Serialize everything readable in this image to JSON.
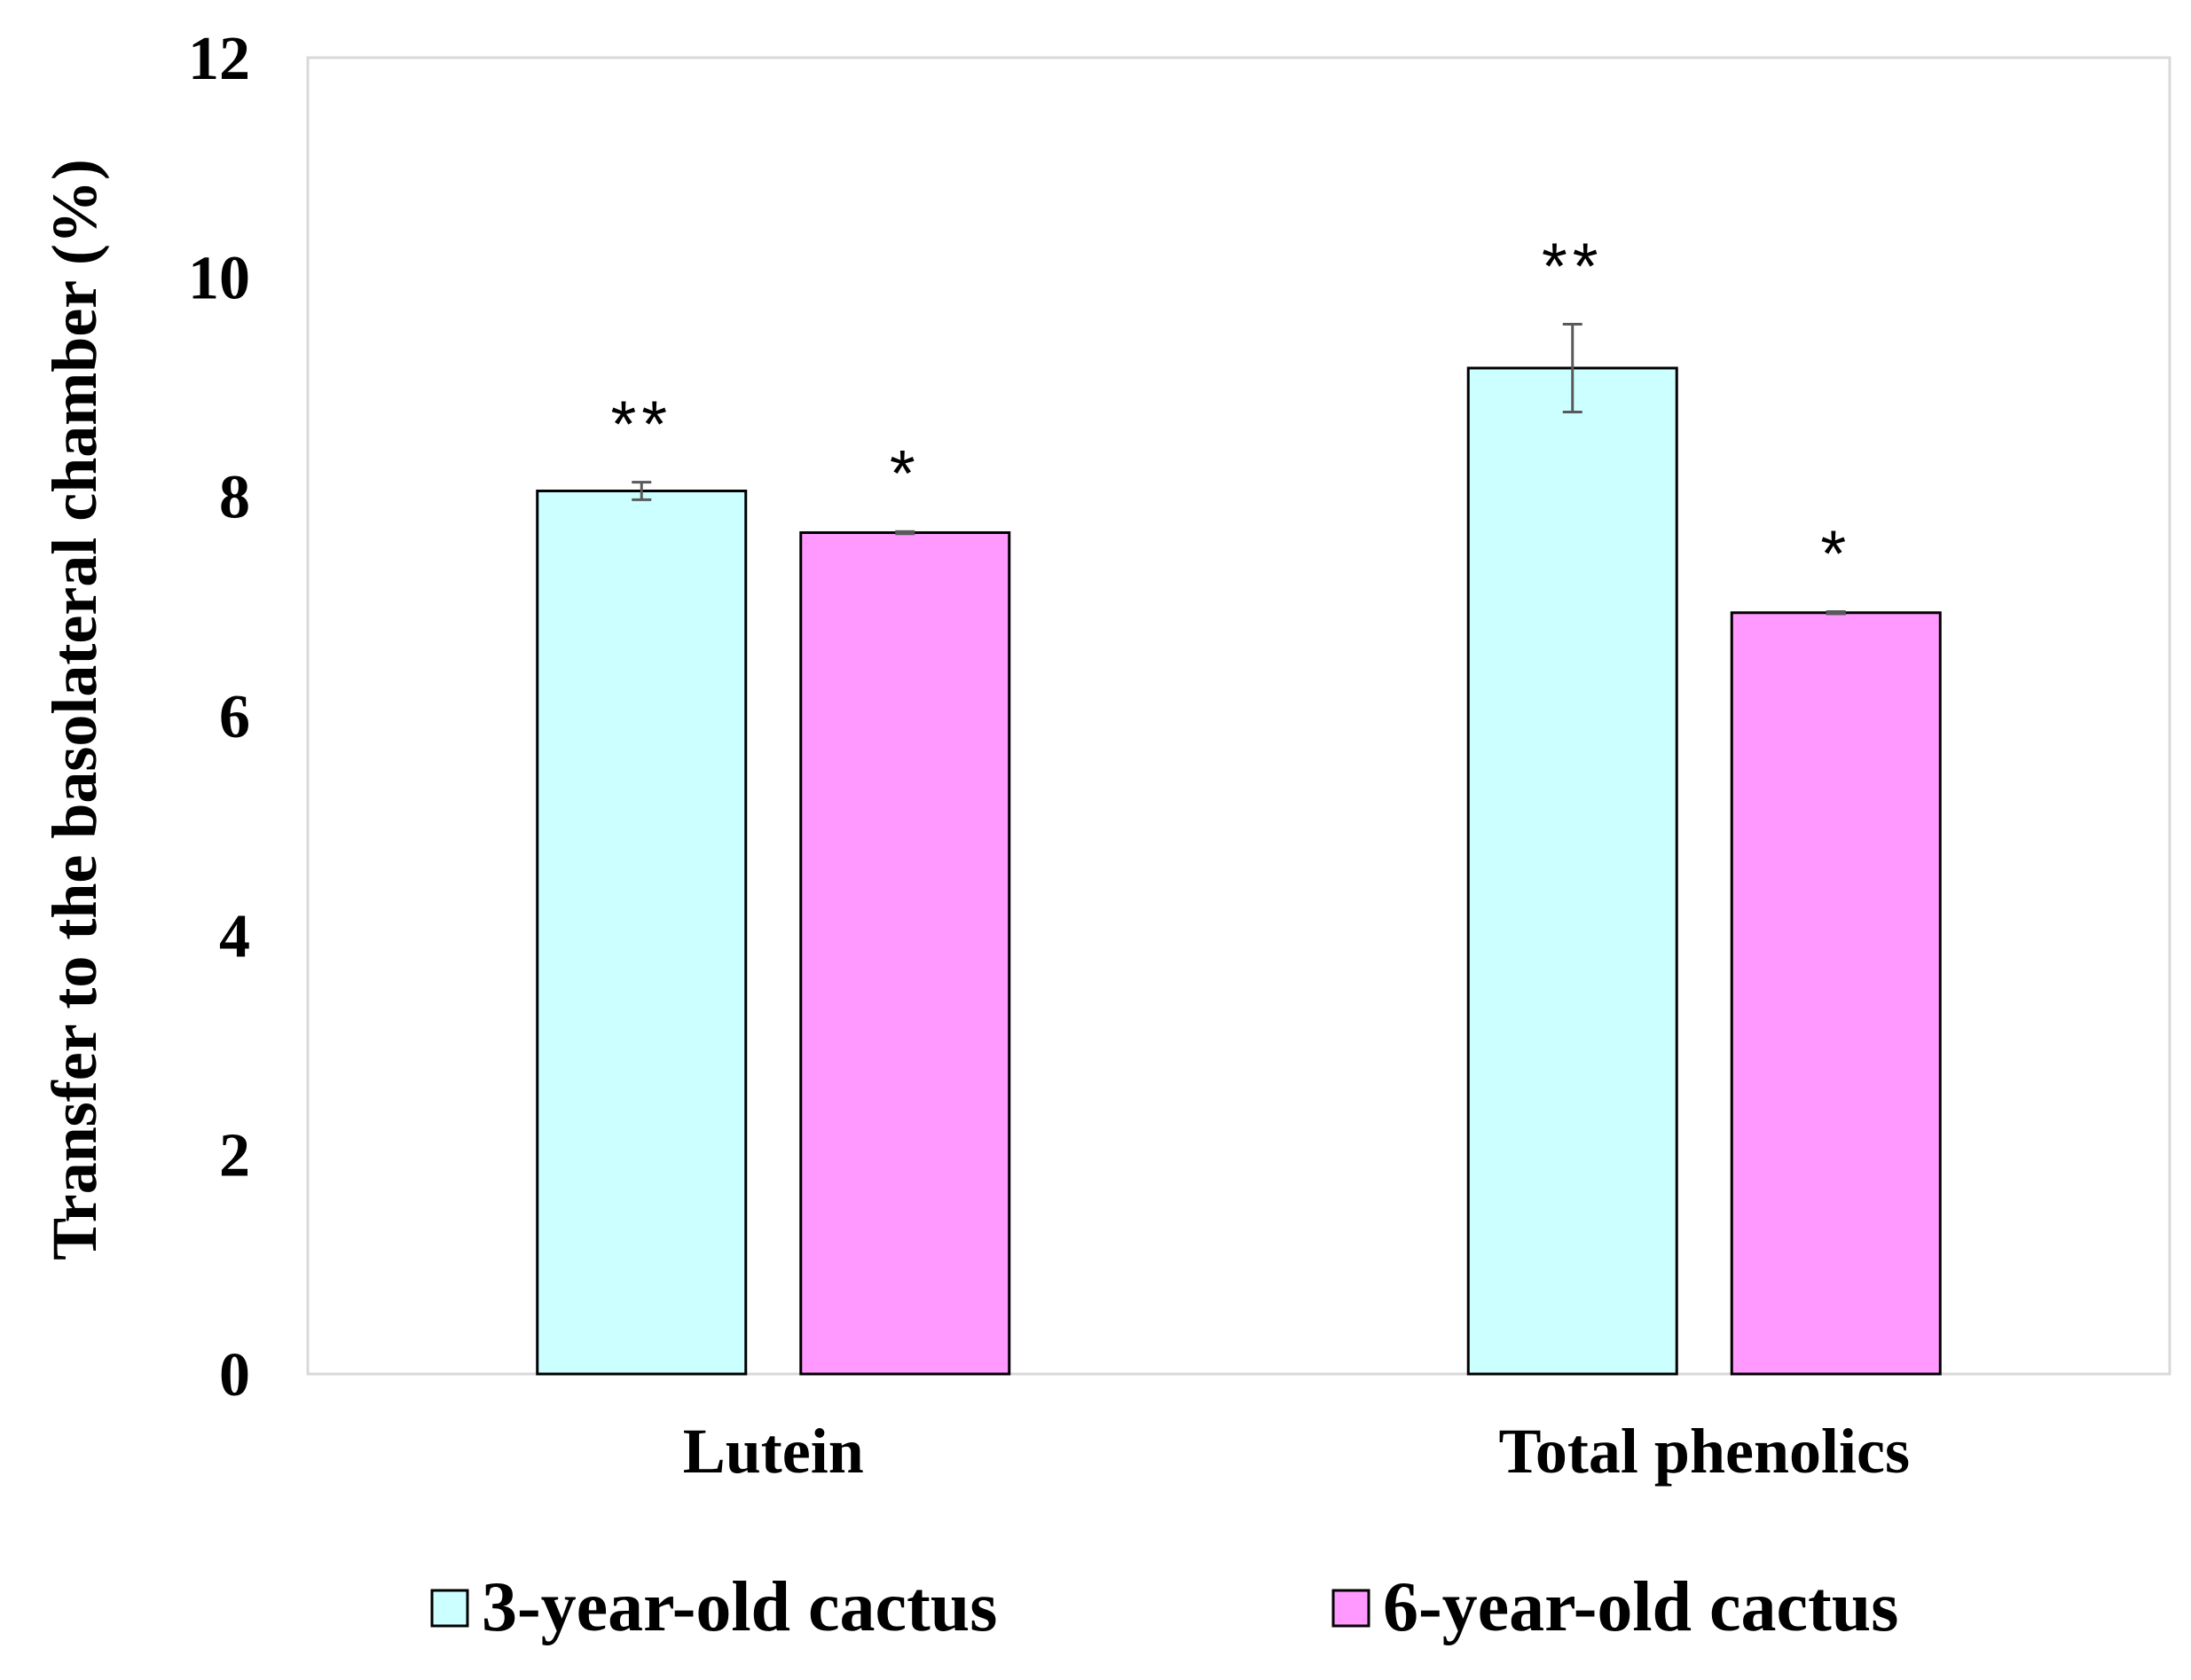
{
  "chart_data": {
    "type": "bar",
    "title": "",
    "xlabel": "",
    "ylabel": "Transfer  to the basolateral chamber (%)",
    "ylim": [
      0,
      12
    ],
    "yticks": [
      "0",
      "2",
      "4",
      "6",
      "8",
      "10",
      "12"
    ],
    "categories": [
      "Lutein",
      "Total phenolics"
    ],
    "series": [
      {
        "name": "3-year-old cactus",
        "color": "#ccffff",
        "values": [
          8.05,
          9.17
        ],
        "errors": [
          0.08,
          0.4
        ],
        "significance": [
          "**",
          "**"
        ]
      },
      {
        "name": "6-year-old cactus",
        "color": "#ff99ff",
        "values": [
          7.67,
          6.94
        ],
        "errors": [
          0.01,
          0.01
        ],
        "significance": [
          "*",
          "*"
        ]
      }
    ],
    "legend_position": "bottom",
    "grid": false
  }
}
